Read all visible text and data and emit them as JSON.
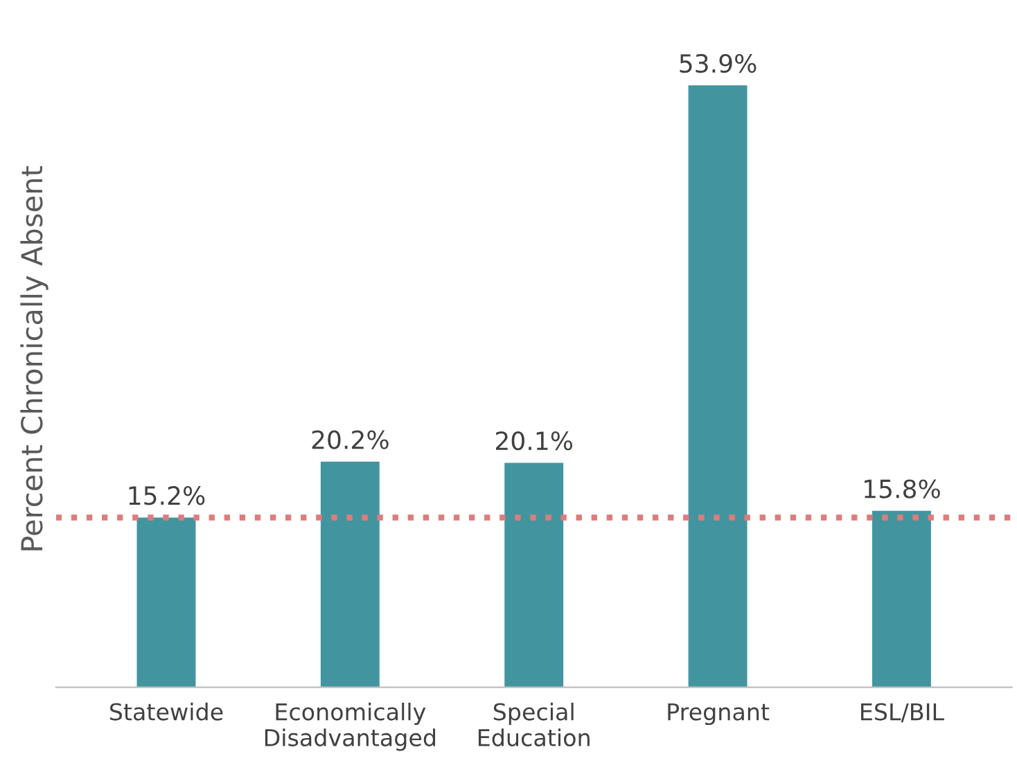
{
  "chart_data": {
    "type": "bar",
    "ylabel": "Percent Chronically Absent",
    "categories": [
      "Statewide",
      "Economically\nDisadvantaged",
      "Special\nEducation",
      "Pregnant",
      "ESL/BIL"
    ],
    "values": [
      15.2,
      20.2,
      20.1,
      53.9,
      15.8
    ],
    "value_labels": [
      "15.2%",
      "20.2%",
      "20.1%",
      "53.9%",
      "15.8%"
    ],
    "color": "#42959f",
    "ref_lines": [
      {
        "axis": "y",
        "value": 15.2,
        "color": "#e07b7b",
        "line_style": "dotted"
      }
    ],
    "grid": false,
    "legend": false
  }
}
